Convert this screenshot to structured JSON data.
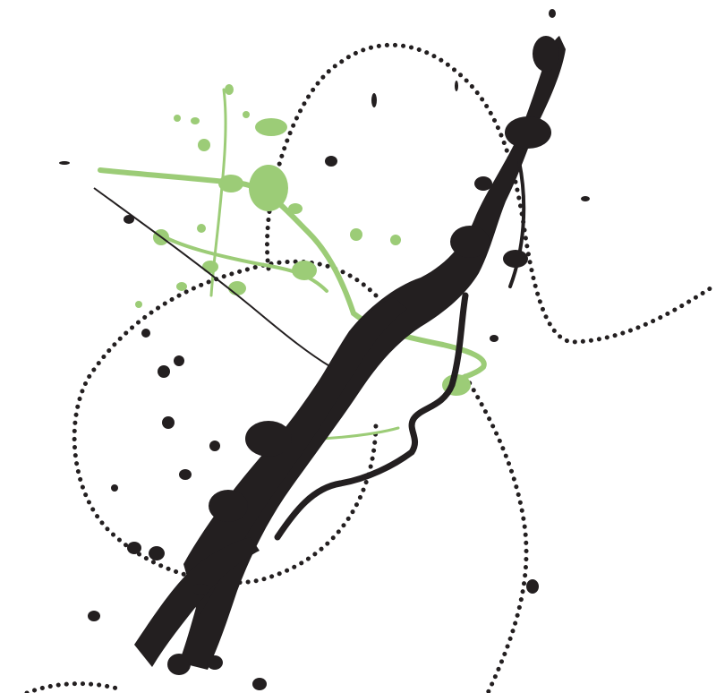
{
  "colors": {
    "background": "#ffffff",
    "ink": "#231f20",
    "accent": "#9ccc77",
    "dots": "#231f20"
  },
  "icons": {
    "black-splatter": "ink-splatter-icon",
    "green-splatter": "paint-splatter-icon",
    "dotted-path": "dotted-curve-icon"
  }
}
